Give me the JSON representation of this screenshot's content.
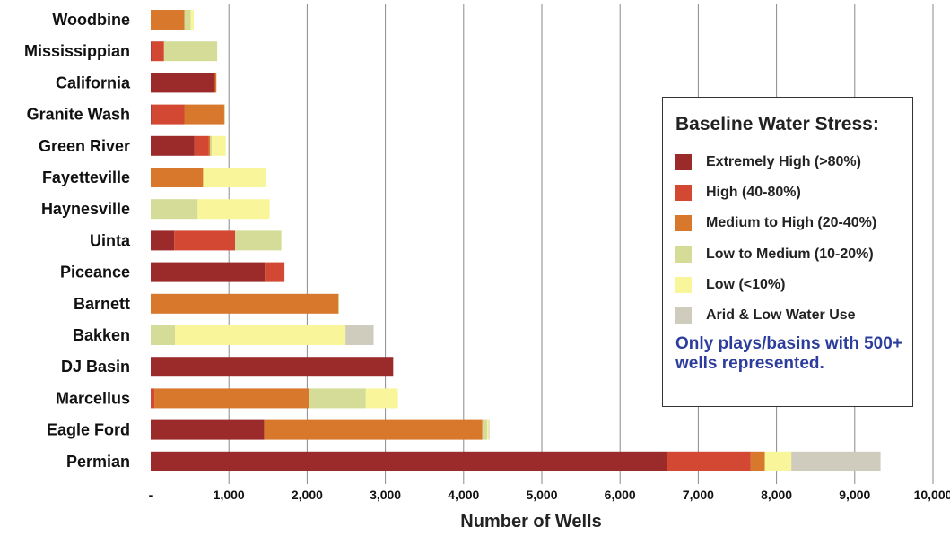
{
  "chart_data": {
    "type": "bar",
    "orientation": "horizontal",
    "stacked": true,
    "categories": [
      "Woodbine",
      "Mississippian",
      "California",
      "Granite Wash",
      "Green River",
      "Fayetteville",
      "Haynesville",
      "Uinta",
      "Piceance",
      "Barnett",
      "Bakken",
      "DJ Basin",
      "Marcellus",
      "Eagle Ford",
      "Permian"
    ],
    "series": [
      {
        "name": "Extremely High (>80%)",
        "color": "#9b2b2b",
        "values": [
          0,
          10,
          820,
          10,
          560,
          0,
          0,
          300,
          1460,
          0,
          0,
          3100,
          0,
          1450,
          6600
        ]
      },
      {
        "name": "High (40-80%)",
        "color": "#d24832",
        "values": [
          0,
          160,
          0,
          420,
          180,
          0,
          0,
          780,
          250,
          0,
          0,
          0,
          50,
          0,
          1070
        ]
      },
      {
        "name": "Medium to High (20-40%)",
        "color": "#d8782d",
        "values": [
          430,
          0,
          20,
          510,
          20,
          670,
          0,
          0,
          0,
          2400,
          0,
          0,
          1970,
          2790,
          180
        ]
      },
      {
        "name": "Low to Medium (10-20%)",
        "color": "#d4dc98",
        "values": [
          80,
          680,
          0,
          10,
          20,
          0,
          600,
          590,
          0,
          10,
          310,
          0,
          730,
          60,
          0
        ]
      },
      {
        "name": "Low (<10%)",
        "color": "#f8f59a",
        "values": [
          40,
          0,
          0,
          0,
          180,
          800,
          920,
          0,
          0,
          0,
          2180,
          0,
          410,
          20,
          340
        ]
      },
      {
        "name": "Arid & Low Water Use",
        "color": "#cfcbbd",
        "values": [
          0,
          0,
          0,
          0,
          0,
          0,
          0,
          0,
          0,
          0,
          360,
          0,
          0,
          10,
          1140
        ]
      }
    ],
    "xlabel": "Number of Wells",
    "ylabel": "",
    "xlim": [
      0,
      10000
    ],
    "xticks": [
      0,
      1000,
      2000,
      3000,
      4000,
      5000,
      6000,
      7000,
      8000,
      9000,
      10000
    ],
    "xtick_labels": [
      "-",
      "1,000",
      "2,000",
      "3,000",
      "4,000",
      "5,000",
      "6,000",
      "7,000",
      "8,000",
      "9,000",
      "10,000"
    ],
    "grid": "vertical",
    "legend_placement": "right"
  },
  "legend": {
    "title": "Baseline Water Stress:",
    "note": "Only plays/basins with 500+ wells represented."
  }
}
